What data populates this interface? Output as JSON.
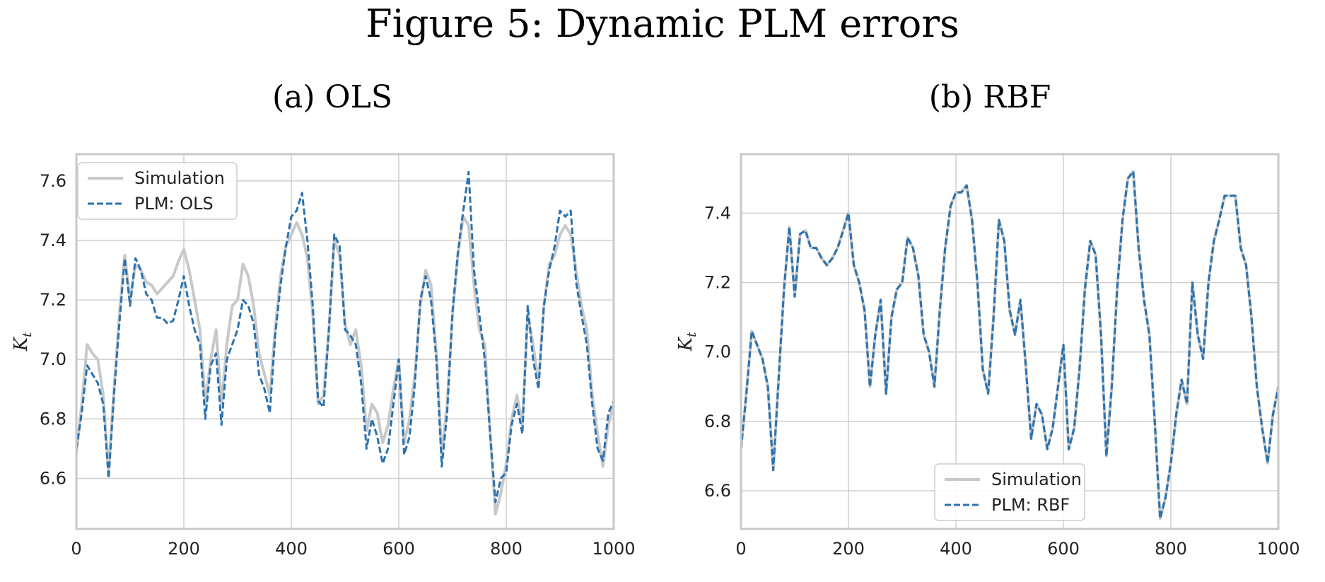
{
  "figure_title": "Figure 5: Dynamic PLM errors",
  "colors": {
    "simulation": "#c8c8c8",
    "plm": "#2a72b0",
    "grid": "#cfcfcf",
    "frame": "#c8c8c8"
  },
  "chart_data": [
    {
      "type": "line",
      "title": "(a) OLS",
      "xlabel": "",
      "ylabel": "K",
      "ylabel_sub": "t",
      "xlim": [
        0,
        1000
      ],
      "ylim": [
        6.43,
        7.69
      ],
      "xticks": [
        0,
        200,
        400,
        600,
        800,
        1000
      ],
      "yticks": [
        6.6,
        6.8,
        7.0,
        7.2,
        7.4,
        7.6
      ],
      "xtick_labels": [
        "0",
        "200",
        "400",
        "600",
        "800",
        "1000"
      ],
      "ytick_labels": [
        "6.6",
        "6.8",
        "7.0",
        "7.2",
        "7.4",
        "7.6"
      ],
      "grid": true,
      "legend_position": "top-left",
      "series": [
        {
          "name": "Simulation",
          "style": "solid",
          "x": [
            0,
            10,
            20,
            30,
            40,
            50,
            60,
            70,
            80,
            90,
            100,
            110,
            120,
            130,
            140,
            150,
            160,
            170,
            180,
            190,
            200,
            210,
            220,
            230,
            240,
            250,
            260,
            270,
            280,
            290,
            300,
            310,
            320,
            330,
            340,
            350,
            360,
            370,
            380,
            390,
            400,
            410,
            420,
            430,
            440,
            450,
            460,
            470,
            480,
            490,
            500,
            510,
            520,
            530,
            540,
            550,
            560,
            570,
            580,
            590,
            600,
            610,
            620,
            630,
            640,
            650,
            660,
            670,
            680,
            690,
            700,
            710,
            720,
            730,
            740,
            750,
            760,
            770,
            780,
            790,
            800,
            810,
            820,
            830,
            840,
            850,
            860,
            870,
            880,
            890,
            900,
            910,
            920,
            930,
            940,
            950,
            960,
            970,
            980,
            990,
            1000
          ],
          "y": [
            6.68,
            6.85,
            7.05,
            7.02,
            7.0,
            6.88,
            6.62,
            6.9,
            7.15,
            7.35,
            7.2,
            7.32,
            7.3,
            7.26,
            7.25,
            7.22,
            7.24,
            7.26,
            7.28,
            7.33,
            7.37,
            7.3,
            7.2,
            7.1,
            6.85,
            7.0,
            7.1,
            6.85,
            7.05,
            7.18,
            7.2,
            7.32,
            7.28,
            7.18,
            7.02,
            6.95,
            6.88,
            7.1,
            7.28,
            7.38,
            7.42,
            7.46,
            7.42,
            7.34,
            7.15,
            6.85,
            6.88,
            7.1,
            7.4,
            7.35,
            7.12,
            7.05,
            7.1,
            6.98,
            6.76,
            6.85,
            6.82,
            6.72,
            6.78,
            6.9,
            7.0,
            6.72,
            6.8,
            6.95,
            7.18,
            7.3,
            7.25,
            7.02,
            6.68,
            6.85,
            7.15,
            7.35,
            7.48,
            7.45,
            7.25,
            7.1,
            7.05,
            6.75,
            6.48,
            6.55,
            6.65,
            6.8,
            6.88,
            6.78,
            7.15,
            7.05,
            6.92,
            7.18,
            7.32,
            7.35,
            7.42,
            7.45,
            7.42,
            7.3,
            7.18,
            7.1,
            6.88,
            6.75,
            6.64,
            6.78,
            6.85
          ]
        },
        {
          "name": "PLM: OLS",
          "style": "dashed",
          "x": [
            0,
            10,
            20,
            30,
            40,
            50,
            60,
            70,
            80,
            90,
            100,
            110,
            120,
            130,
            140,
            150,
            160,
            170,
            180,
            190,
            200,
            210,
            220,
            230,
            240,
            250,
            260,
            270,
            280,
            290,
            300,
            310,
            320,
            330,
            340,
            350,
            360,
            370,
            380,
            390,
            400,
            410,
            420,
            430,
            440,
            450,
            460,
            470,
            480,
            490,
            500,
            510,
            520,
            530,
            540,
            550,
            560,
            570,
            580,
            590,
            600,
            610,
            620,
            630,
            640,
            650,
            660,
            670,
            680,
            690,
            700,
            710,
            720,
            730,
            740,
            750,
            760,
            770,
            780,
            790,
            800,
            810,
            820,
            830,
            840,
            850,
            860,
            870,
            880,
            890,
            900,
            910,
            920,
            930,
            940,
            950,
            960,
            970,
            980,
            990,
            1000
          ],
          "y": [
            6.7,
            6.82,
            6.98,
            6.95,
            6.92,
            6.85,
            6.6,
            6.88,
            7.12,
            7.34,
            7.18,
            7.34,
            7.3,
            7.22,
            7.2,
            7.14,
            7.14,
            7.12,
            7.13,
            7.2,
            7.28,
            7.18,
            7.1,
            7.05,
            6.8,
            6.98,
            7.02,
            6.78,
            7.0,
            7.05,
            7.1,
            7.2,
            7.18,
            7.12,
            6.95,
            6.9,
            6.82,
            7.08,
            7.25,
            7.38,
            7.48,
            7.5,
            7.56,
            7.4,
            7.18,
            6.86,
            6.84,
            7.1,
            7.42,
            7.38,
            7.1,
            7.08,
            7.05,
            6.92,
            6.7,
            6.8,
            6.74,
            6.65,
            6.7,
            6.85,
            7.0,
            6.68,
            6.74,
            6.92,
            7.2,
            7.28,
            7.2,
            7.0,
            6.64,
            6.82,
            7.16,
            7.36,
            7.5,
            7.63,
            7.3,
            7.15,
            7.0,
            6.75,
            6.52,
            6.6,
            6.62,
            6.78,
            6.85,
            6.75,
            7.18,
            7.0,
            6.9,
            7.18,
            7.3,
            7.38,
            7.5,
            7.48,
            7.5,
            7.26,
            7.15,
            7.05,
            6.85,
            6.7,
            6.66,
            6.82,
            6.86
          ]
        }
      ]
    },
    {
      "type": "line",
      "title": "(b) RBF",
      "xlabel": "",
      "ylabel": "K",
      "ylabel_sub": "t",
      "xlim": [
        0,
        1000
      ],
      "ylim": [
        6.49,
        7.57
      ],
      "xticks": [
        0,
        200,
        400,
        600,
        800,
        1000
      ],
      "yticks": [
        6.6,
        6.8,
        7.0,
        7.2,
        7.4
      ],
      "xtick_labels": [
        "0",
        "200",
        "400",
        "600",
        "800",
        "1000"
      ],
      "ytick_labels": [
        "6.6",
        "6.8",
        "7.0",
        "7.2",
        "7.4"
      ],
      "grid": true,
      "legend_position": "bottom-center",
      "series": [
        {
          "name": "Simulation",
          "style": "solid",
          "x": [
            0,
            10,
            20,
            30,
            40,
            50,
            60,
            70,
            80,
            90,
            100,
            110,
            120,
            130,
            140,
            150,
            160,
            170,
            180,
            190,
            200,
            210,
            220,
            230,
            240,
            250,
            260,
            270,
            280,
            290,
            300,
            310,
            320,
            330,
            340,
            350,
            360,
            370,
            380,
            390,
            400,
            410,
            420,
            430,
            440,
            450,
            460,
            470,
            480,
            490,
            500,
            510,
            520,
            530,
            540,
            550,
            560,
            570,
            580,
            590,
            600,
            610,
            620,
            630,
            640,
            650,
            660,
            670,
            680,
            690,
            700,
            710,
            720,
            730,
            740,
            750,
            760,
            770,
            780,
            790,
            800,
            810,
            820,
            830,
            840,
            850,
            860,
            870,
            880,
            890,
            900,
            910,
            920,
            930,
            940,
            950,
            960,
            970,
            980,
            990,
            1000
          ],
          "y": [
            6.72,
            6.88,
            7.06,
            7.02,
            6.98,
            6.9,
            6.66,
            6.92,
            7.18,
            7.36,
            7.16,
            7.34,
            7.35,
            7.3,
            7.3,
            7.27,
            7.25,
            7.27,
            7.3,
            7.35,
            7.4,
            7.25,
            7.2,
            7.12,
            6.9,
            7.05,
            7.15,
            6.88,
            7.1,
            7.18,
            7.2,
            7.33,
            7.3,
            7.22,
            7.05,
            7.0,
            6.9,
            7.12,
            7.3,
            7.42,
            7.46,
            7.46,
            7.48,
            7.38,
            7.2,
            6.95,
            6.88,
            7.1,
            7.38,
            7.32,
            7.12,
            7.05,
            7.15,
            6.96,
            6.75,
            6.85,
            6.82,
            6.72,
            6.78,
            6.9,
            7.02,
            6.72,
            6.78,
            6.95,
            7.18,
            7.32,
            7.28,
            7.05,
            6.7,
            6.9,
            7.18,
            7.38,
            7.5,
            7.52,
            7.3,
            7.15,
            7.05,
            6.8,
            6.52,
            6.58,
            6.68,
            6.82,
            6.92,
            6.85,
            7.2,
            7.05,
            6.98,
            7.2,
            7.32,
            7.38,
            7.45,
            7.45,
            7.45,
            7.3,
            7.25,
            7.1,
            6.9,
            6.78,
            6.68,
            6.82,
            6.9
          ]
        },
        {
          "name": "PLM: RBF",
          "style": "dashed",
          "x": [
            0,
            10,
            20,
            30,
            40,
            50,
            60,
            70,
            80,
            90,
            100,
            110,
            120,
            130,
            140,
            150,
            160,
            170,
            180,
            190,
            200,
            210,
            220,
            230,
            240,
            250,
            260,
            270,
            280,
            290,
            300,
            310,
            320,
            330,
            340,
            350,
            360,
            370,
            380,
            390,
            400,
            410,
            420,
            430,
            440,
            450,
            460,
            470,
            480,
            490,
            500,
            510,
            520,
            530,
            540,
            550,
            560,
            570,
            580,
            590,
            600,
            610,
            620,
            630,
            640,
            650,
            660,
            670,
            680,
            690,
            700,
            710,
            720,
            730,
            740,
            750,
            760,
            770,
            780,
            790,
            800,
            810,
            820,
            830,
            840,
            850,
            860,
            870,
            880,
            890,
            900,
            910,
            920,
            930,
            940,
            950,
            960,
            970,
            980,
            990,
            1000
          ],
          "y": [
            6.72,
            6.88,
            7.06,
            7.02,
            6.98,
            6.9,
            6.66,
            6.92,
            7.18,
            7.36,
            7.16,
            7.34,
            7.35,
            7.3,
            7.3,
            7.27,
            7.25,
            7.27,
            7.3,
            7.35,
            7.4,
            7.25,
            7.2,
            7.12,
            6.9,
            7.05,
            7.15,
            6.88,
            7.1,
            7.18,
            7.2,
            7.33,
            7.3,
            7.22,
            7.05,
            7.0,
            6.9,
            7.12,
            7.3,
            7.42,
            7.46,
            7.46,
            7.48,
            7.38,
            7.2,
            6.95,
            6.88,
            7.1,
            7.38,
            7.32,
            7.12,
            7.05,
            7.15,
            6.96,
            6.75,
            6.85,
            6.82,
            6.72,
            6.78,
            6.9,
            7.02,
            6.72,
            6.78,
            6.95,
            7.18,
            7.32,
            7.28,
            7.05,
            6.7,
            6.9,
            7.18,
            7.38,
            7.5,
            7.52,
            7.3,
            7.15,
            7.05,
            6.8,
            6.52,
            6.58,
            6.68,
            6.82,
            6.92,
            6.85,
            7.2,
            7.05,
            6.98,
            7.2,
            7.32,
            7.38,
            7.45,
            7.45,
            7.45,
            7.3,
            7.25,
            7.1,
            6.9,
            6.78,
            6.68,
            6.82,
            6.9
          ]
        }
      ]
    }
  ]
}
